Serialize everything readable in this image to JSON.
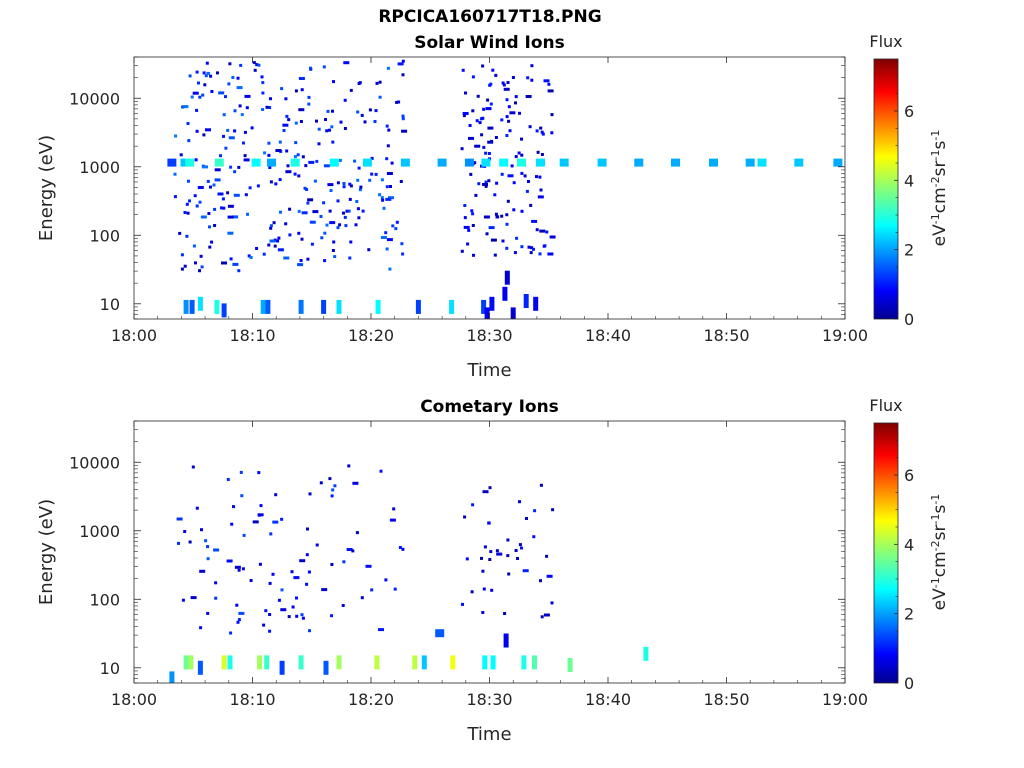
{
  "figure": {
    "filename": "RPCICA160717T18.PNG"
  },
  "chart_data": [
    {
      "type": "heatmap",
      "title": "Solar Wind Ions",
      "xlabel": "Time",
      "ylabel": "Energy (eV)",
      "x_ticks": [
        "18:00",
        "18:10",
        "18:20",
        "18:30",
        "18:40",
        "18:50",
        "19:00"
      ],
      "x_range_minutes": [
        0,
        60
      ],
      "y_scale": "log",
      "y_range": [
        6,
        40000
      ],
      "y_ticks": [
        {
          "value": 10,
          "label": "10"
        },
        {
          "value": 100,
          "label": "100"
        },
        {
          "value": 1000,
          "label": "1000"
        },
        {
          "value": 10000,
          "label": "10000"
        }
      ],
      "colorbar": {
        "title": "Flux",
        "range": [
          0,
          7.5
        ],
        "ticks": [
          "0",
          "2",
          "4",
          "6"
        ],
        "colormap": "jet"
      },
      "clusters": [
        {
          "t0": 3.3,
          "t1": 22.6,
          "e0": 30,
          "e1": 35000,
          "count": 300,
          "f0": 0.4,
          "f1": 1.8
        },
        {
          "t0": 27.5,
          "t1": 35.2,
          "e0": 50,
          "e1": 30000,
          "count": 140,
          "f0": 0.3,
          "f1": 1.3
        }
      ],
      "flux_cells": [
        {
          "t": 3.2,
          "e": 1150,
          "f": 1.4
        },
        {
          "t": 4.3,
          "e": 1150,
          "f": 2.4
        },
        {
          "t": 4.7,
          "e": 1150,
          "f": 3.0
        },
        {
          "t": 7.2,
          "e": 1150,
          "f": 3.2
        },
        {
          "t": 10.3,
          "e": 1150,
          "f": 2.8
        },
        {
          "t": 11.6,
          "e": 1150,
          "f": 2.2
        },
        {
          "t": 13.6,
          "e": 1150,
          "f": 3.0
        },
        {
          "t": 16.9,
          "e": 1150,
          "f": 2.8
        },
        {
          "t": 19.7,
          "e": 1150,
          "f": 2.6
        },
        {
          "t": 22.9,
          "e": 1150,
          "f": 2.4
        },
        {
          "t": 26.0,
          "e": 1150,
          "f": 2.2
        },
        {
          "t": 28.3,
          "e": 1150,
          "f": 2.0
        },
        {
          "t": 29.7,
          "e": 1150,
          "f": 2.6
        },
        {
          "t": 31.2,
          "e": 1150,
          "f": 2.8
        },
        {
          "t": 32.7,
          "e": 1150,
          "f": 3.0
        },
        {
          "t": 34.3,
          "e": 1150,
          "f": 2.6
        },
        {
          "t": 36.3,
          "e": 1150,
          "f": 2.4
        },
        {
          "t": 39.5,
          "e": 1150,
          "f": 2.4
        },
        {
          "t": 42.6,
          "e": 1150,
          "f": 2.2
        },
        {
          "t": 45.7,
          "e": 1150,
          "f": 2.2
        },
        {
          "t": 48.9,
          "e": 1150,
          "f": 2.2
        },
        {
          "t": 52.0,
          "e": 1150,
          "f": 2.2
        },
        {
          "t": 53.0,
          "e": 1150,
          "f": 2.6
        },
        {
          "t": 56.1,
          "e": 1150,
          "f": 2.4
        },
        {
          "t": 59.4,
          "e": 1150,
          "f": 2.2
        },
        {
          "t": 4.4,
          "e": 9,
          "f": 2.0
        },
        {
          "t": 4.9,
          "e": 9,
          "f": 1.6
        },
        {
          "t": 5.6,
          "e": 10,
          "f": 2.6
        },
        {
          "t": 7.0,
          "e": 9,
          "f": 3.0
        },
        {
          "t": 7.6,
          "e": 8,
          "f": 1.4
        },
        {
          "t": 10.9,
          "e": 9,
          "f": 2.2
        },
        {
          "t": 11.3,
          "e": 9,
          "f": 1.6
        },
        {
          "t": 14.1,
          "e": 9,
          "f": 1.8
        },
        {
          "t": 16.0,
          "e": 9,
          "f": 1.4
        },
        {
          "t": 17.3,
          "e": 9,
          "f": 2.6
        },
        {
          "t": 20.6,
          "e": 9,
          "f": 2.8
        },
        {
          "t": 24.0,
          "e": 9,
          "f": 1.4
        },
        {
          "t": 26.8,
          "e": 9,
          "f": 2.6
        },
        {
          "t": 29.5,
          "e": 9,
          "f": 1.4
        },
        {
          "t": 30.2,
          "e": 10,
          "f": 1.0
        },
        {
          "t": 31.3,
          "e": 14,
          "f": 0.8
        },
        {
          "t": 31.5,
          "e": 24,
          "f": 0.6
        },
        {
          "t": 33.1,
          "e": 11,
          "f": 1.2
        },
        {
          "t": 33.9,
          "e": 10,
          "f": 0.8
        },
        {
          "t": 29.8,
          "e": 7,
          "f": 0.8
        },
        {
          "t": 32.0,
          "e": 7,
          "f": 0.6
        }
      ]
    },
    {
      "type": "heatmap",
      "title": "Cometary Ions",
      "xlabel": "Time",
      "ylabel": "Energy (eV)",
      "x_ticks": [
        "18:00",
        "18:10",
        "18:20",
        "18:30",
        "18:40",
        "18:50",
        "19:00"
      ],
      "x_range_minutes": [
        0,
        60
      ],
      "y_scale": "log",
      "y_range": [
        6,
        40000
      ],
      "y_ticks": [
        {
          "value": 10,
          "label": "10"
        },
        {
          "value": 100,
          "label": "100"
        },
        {
          "value": 1000,
          "label": "1000"
        },
        {
          "value": 10000,
          "label": "10000"
        }
      ],
      "colorbar": {
        "title": "Flux",
        "range": [
          0,
          7.5
        ],
        "ticks": [
          "0",
          "2",
          "4",
          "6"
        ],
        "colormap": "jet"
      },
      "clusters": [
        {
          "t0": 3.3,
          "t1": 22.6,
          "e0": 30,
          "e1": 9000,
          "count": 95,
          "f0": 0.4,
          "f1": 1.6
        },
        {
          "t0": 27.5,
          "t1": 35.2,
          "e0": 50,
          "e1": 6000,
          "count": 40,
          "f0": 0.3,
          "f1": 1.2
        }
      ],
      "flux_cells": [
        {
          "t": 4.4,
          "e": 12,
          "f": 3.6
        },
        {
          "t": 4.8,
          "e": 12,
          "f": 4.0
        },
        {
          "t": 5.6,
          "e": 10,
          "f": 1.6
        },
        {
          "t": 7.6,
          "e": 12,
          "f": 4.4
        },
        {
          "t": 8.1,
          "e": 12,
          "f": 3.0
        },
        {
          "t": 10.6,
          "e": 12,
          "f": 4.0
        },
        {
          "t": 11.2,
          "e": 12,
          "f": 3.2
        },
        {
          "t": 12.5,
          "e": 10,
          "f": 1.4
        },
        {
          "t": 14.1,
          "e": 12,
          "f": 3.2
        },
        {
          "t": 16.2,
          "e": 10,
          "f": 1.6
        },
        {
          "t": 17.3,
          "e": 12,
          "f": 4.0
        },
        {
          "t": 20.5,
          "e": 12,
          "f": 4.2
        },
        {
          "t": 23.7,
          "e": 12,
          "f": 4.2
        },
        {
          "t": 24.5,
          "e": 12,
          "f": 2.4
        },
        {
          "t": 26.9,
          "e": 12,
          "f": 4.6
        },
        {
          "t": 29.6,
          "e": 12,
          "f": 2.8
        },
        {
          "t": 30.3,
          "e": 12,
          "f": 2.8
        },
        {
          "t": 31.4,
          "e": 25,
          "f": 0.8
        },
        {
          "t": 32.9,
          "e": 12,
          "f": 3.0
        },
        {
          "t": 33.8,
          "e": 12,
          "f": 3.4
        },
        {
          "t": 36.8,
          "e": 11,
          "f": 3.6
        },
        {
          "t": 43.2,
          "e": 16,
          "f": 3.0
        },
        {
          "t": 25.8,
          "e": 32,
          "f": 1.6
        },
        {
          "t": 3.2,
          "e": 7,
          "f": 2.0
        }
      ]
    }
  ]
}
